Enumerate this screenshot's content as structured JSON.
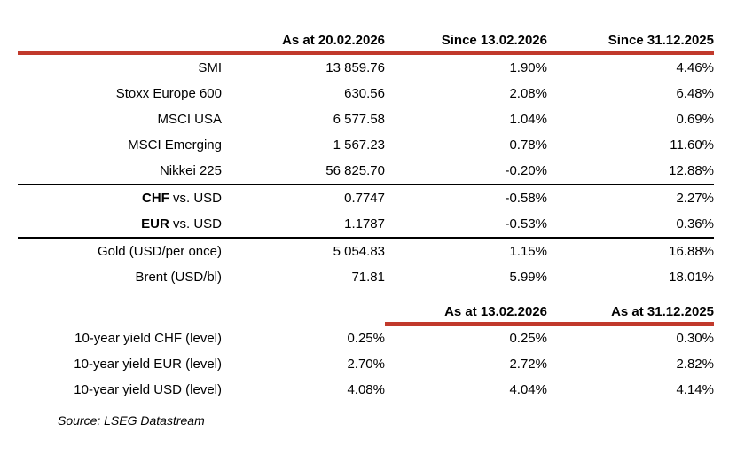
{
  "colors": {
    "accent_red": "#c1392b",
    "line_black": "#000000"
  },
  "table1": {
    "col_headers": [
      "As at 20.02.2026",
      "Since 13.02.2026",
      "Since 31.12.2025"
    ],
    "rows": [
      {
        "prefix": "",
        "label": "SMI",
        "value": "13 859.76",
        "chg1": "1.90%",
        "chg2": "4.46%"
      },
      {
        "prefix": "",
        "label": "Stoxx Europe 600",
        "value": "630.56",
        "chg1": "2.08%",
        "chg2": "6.48%"
      },
      {
        "prefix": "",
        "label": "MSCI USA",
        "value": "6 577.58",
        "chg1": "1.04%",
        "chg2": "0.69%"
      },
      {
        "prefix": "",
        "label": "MSCI Emerging",
        "value": "1 567.23",
        "chg1": "0.78%",
        "chg2": "11.60%"
      },
      {
        "prefix": "",
        "label": "Nikkei 225",
        "value": "56 825.70",
        "chg1": "-0.20%",
        "chg2": "12.88%"
      },
      {
        "prefix": "CHF",
        "label": " vs. USD",
        "value": "0.7747",
        "chg1": "-0.58%",
        "chg2": "2.27%"
      },
      {
        "prefix": "EUR",
        "label": " vs. USD",
        "value": "1.1787",
        "chg1": "-0.53%",
        "chg2": "0.36%"
      },
      {
        "prefix": "",
        "label": "Gold (USD/per once)",
        "value": "5 054.83",
        "chg1": "1.15%",
        "chg2": "16.88%"
      },
      {
        "prefix": "",
        "label": "Brent (USD/bl)",
        "value": "71.81",
        "chg1": "5.99%",
        "chg2": "18.01%"
      }
    ]
  },
  "table2": {
    "col_headers": [
      "As at 13.02.2026",
      "As at 31.12.2025"
    ],
    "rows": [
      {
        "label": "10-year yield CHF (level)",
        "value": "0.25%",
        "v1": "0.25%",
        "v2": "0.30%"
      },
      {
        "label": "10-year yield EUR (level)",
        "value": "2.70%",
        "v1": "2.72%",
        "v2": "2.82%"
      },
      {
        "label": "10-year yield USD (level)",
        "value": "4.08%",
        "v1": "4.04%",
        "v2": "4.14%"
      }
    ]
  },
  "footer": {
    "source": "Source: LSEG Datastream"
  }
}
